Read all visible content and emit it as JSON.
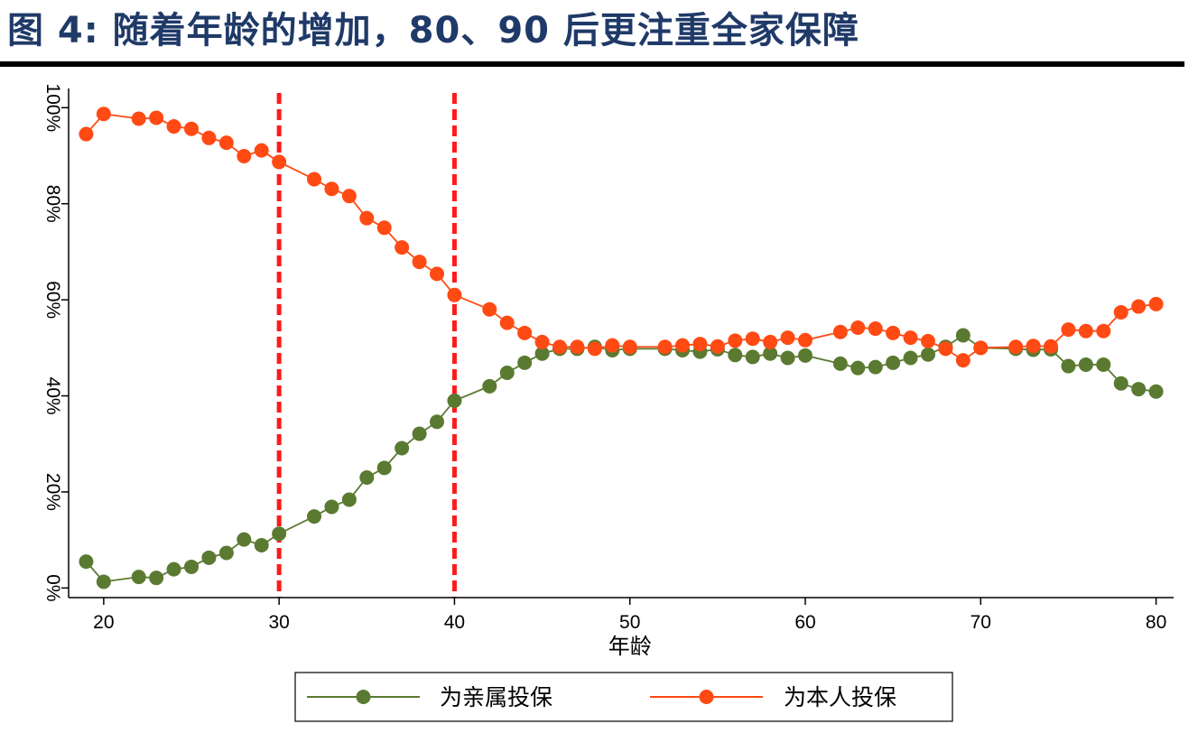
{
  "page": {
    "title": "图 4:  随着年龄的增加，80、90 后更注重全家保障"
  },
  "chart_data": {
    "type": "line",
    "xlabel": "年龄",
    "ylabel": "",
    "xlim": [
      18,
      81
    ],
    "ylim": [
      -2,
      104
    ],
    "xticks": [
      20,
      30,
      40,
      50,
      60,
      70,
      80
    ],
    "xtick_labels": [
      "20",
      "30",
      "40",
      "50",
      "60",
      "70",
      "80"
    ],
    "yticks": [
      0,
      20,
      40,
      60,
      80,
      100
    ],
    "ytick_labels": [
      "0%",
      "20%",
      "40%",
      "60%",
      "80%",
      "100%"
    ],
    "reference_lines": [
      30,
      40
    ],
    "legend_position": "bottom",
    "series": [
      {
        "name": "为亲属投保",
        "color": "#5a7a31",
        "points": [
          [
            19,
            5.5
          ],
          [
            20,
            1.3
          ],
          [
            22,
            2.3
          ],
          [
            23,
            2.1
          ],
          [
            24,
            3.9
          ],
          [
            25,
            4.4
          ],
          [
            26,
            6.3
          ],
          [
            27,
            7.3
          ],
          [
            28,
            10.1
          ],
          [
            29,
            8.9
          ],
          [
            30,
            11.3
          ],
          [
            32,
            14.9
          ],
          [
            33,
            16.9
          ],
          [
            34,
            18.4
          ],
          [
            35,
            23.0
          ],
          [
            36,
            25.0
          ],
          [
            37,
            29.1
          ],
          [
            38,
            32.1
          ],
          [
            39,
            34.6
          ],
          [
            40,
            39.0
          ],
          [
            42,
            42.0
          ],
          [
            43,
            44.8
          ],
          [
            44,
            46.9
          ],
          [
            45,
            48.8
          ],
          [
            46,
            49.8
          ],
          [
            47,
            49.8
          ],
          [
            48,
            50.2
          ],
          [
            49,
            49.5
          ],
          [
            50,
            49.8
          ],
          [
            52,
            49.8
          ],
          [
            53,
            49.5
          ],
          [
            54,
            49.2
          ],
          [
            55,
            49.7
          ],
          [
            56,
            48.5
          ],
          [
            57,
            48.1
          ],
          [
            58,
            48.8
          ],
          [
            59,
            47.9
          ],
          [
            60,
            48.4
          ],
          [
            62,
            46.7
          ],
          [
            63,
            45.8
          ],
          [
            64,
            46.0
          ],
          [
            65,
            46.9
          ],
          [
            66,
            47.9
          ],
          [
            67,
            48.6
          ],
          [
            68,
            50.2
          ],
          [
            69,
            52.6
          ],
          [
            70,
            50.0
          ],
          [
            72,
            49.8
          ],
          [
            73,
            49.6
          ],
          [
            74,
            49.7
          ],
          [
            75,
            46.2
          ],
          [
            76,
            46.5
          ],
          [
            77,
            46.5
          ],
          [
            78,
            42.6
          ],
          [
            79,
            41.4
          ],
          [
            80,
            40.9
          ]
        ]
      },
      {
        "name": "为本人投保",
        "color": "#ff4a14",
        "points": [
          [
            19,
            94.5
          ],
          [
            20,
            98.7
          ],
          [
            22,
            97.7
          ],
          [
            23,
            97.9
          ],
          [
            24,
            96.1
          ],
          [
            25,
            95.6
          ],
          [
            26,
            93.7
          ],
          [
            27,
            92.7
          ],
          [
            28,
            89.9
          ],
          [
            29,
            91.1
          ],
          [
            30,
            88.7
          ],
          [
            32,
            85.1
          ],
          [
            33,
            83.1
          ],
          [
            34,
            81.6
          ],
          [
            35,
            77.0
          ],
          [
            36,
            75.0
          ],
          [
            37,
            70.9
          ],
          [
            38,
            67.9
          ],
          [
            39,
            65.4
          ],
          [
            40,
            61.0
          ],
          [
            42,
            58.0
          ],
          [
            43,
            55.2
          ],
          [
            44,
            53.1
          ],
          [
            45,
            51.2
          ],
          [
            46,
            50.2
          ],
          [
            47,
            50.2
          ],
          [
            48,
            49.8
          ],
          [
            49,
            50.5
          ],
          [
            50,
            50.2
          ],
          [
            52,
            50.2
          ],
          [
            53,
            50.5
          ],
          [
            54,
            50.8
          ],
          [
            55,
            50.3
          ],
          [
            56,
            51.5
          ],
          [
            57,
            51.9
          ],
          [
            58,
            51.2
          ],
          [
            59,
            52.1
          ],
          [
            60,
            51.6
          ],
          [
            62,
            53.3
          ],
          [
            63,
            54.2
          ],
          [
            64,
            54.0
          ],
          [
            65,
            53.1
          ],
          [
            66,
            52.1
          ],
          [
            67,
            51.4
          ],
          [
            68,
            49.8
          ],
          [
            69,
            47.4
          ],
          [
            70,
            50.0
          ],
          [
            72,
            50.2
          ],
          [
            73,
            50.4
          ],
          [
            74,
            50.3
          ],
          [
            75,
            53.8
          ],
          [
            76,
            53.5
          ],
          [
            77,
            53.5
          ],
          [
            78,
            57.4
          ],
          [
            79,
            58.6
          ],
          [
            80,
            59.1
          ]
        ]
      }
    ]
  }
}
